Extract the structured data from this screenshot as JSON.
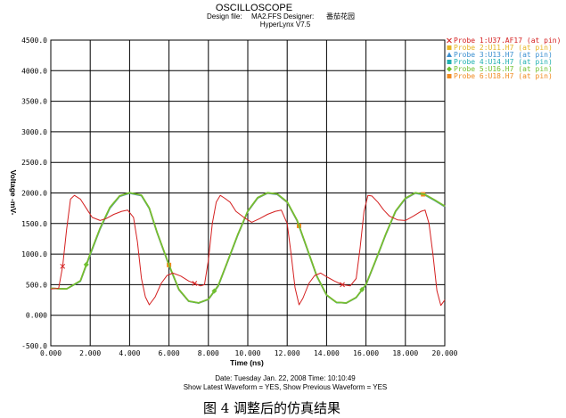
{
  "header": {
    "title": "OSCILLOSCOPE",
    "design_file_label": "Design file:",
    "design_file": "MA2.FFS",
    "designer_label": "Designer:",
    "designer": "番茄花园",
    "version": "HyperLynx V7.5"
  },
  "footer": {
    "date_line": "Date: Tuesday Jan. 22, 2008   Time: 10:10:49",
    "waveform_line": "Show Latest Waveform = YES,  Show Previous Waveform = YES"
  },
  "caption": "图 4   调整后的仿真结果",
  "chart_data": {
    "type": "line",
    "xlabel": "Time (ns)",
    "ylabel": "Voltage -mV-",
    "xlim": [
      0,
      20
    ],
    "ylim": [
      -500,
      4500
    ],
    "grid": true,
    "legend_position": "right",
    "x_ticks": [
      0,
      2,
      4,
      6,
      8,
      10,
      12,
      14,
      16,
      18,
      20
    ],
    "x_tick_labels": [
      "0.000",
      "2.000",
      "4.000",
      "6.000",
      "8.000",
      "10.000",
      "12.000",
      "14.000",
      "16.000",
      "18.000",
      "20.000"
    ],
    "y_ticks": [
      -500,
      0,
      500,
      1000,
      1500,
      2000,
      2500,
      3000,
      3500,
      4000,
      4500
    ],
    "y_tick_labels": [
      "-500.0",
      "0.000",
      "500.0",
      "1000.0",
      "1500.0",
      "2000.0",
      "2500.0",
      "3000.0",
      "3500.0",
      "4000.0",
      "4500.0"
    ],
    "series": [
      {
        "name": "Probe 1:U37.AF17 (at pin)",
        "color": "#d42020",
        "marker": "x",
        "x": [
          0,
          0.4,
          0.6,
          0.8,
          1.0,
          1.2,
          1.5,
          1.8,
          2.1,
          2.5,
          2.8,
          3.2,
          3.6,
          3.9,
          4.2,
          4.4,
          4.6,
          4.8,
          5.0,
          5.3,
          5.6,
          5.9,
          6.2,
          6.6,
          7.0,
          7.3,
          7.6,
          7.8,
          8.0,
          8.2,
          8.4,
          8.6,
          8.8,
          9.1,
          9.4,
          9.8,
          10.2,
          10.6,
          11.0,
          11.4,
          11.7,
          12.0,
          12.2,
          12.4,
          12.6,
          12.8,
          13.1,
          13.4,
          13.7,
          14.0,
          14.4,
          14.8,
          15.2,
          15.5,
          15.7,
          15.9,
          16.1,
          16.3,
          16.6,
          16.9,
          17.2,
          17.6,
          18.0,
          18.4,
          18.8,
          19.0,
          19.2,
          19.4,
          19.6,
          19.8,
          20.0
        ],
        "y": [
          430,
          440,
          800,
          1400,
          1900,
          1960,
          1900,
          1750,
          1600,
          1550,
          1580,
          1650,
          1700,
          1720,
          1600,
          1200,
          600,
          300,
          170,
          300,
          520,
          650,
          690,
          640,
          560,
          520,
          480,
          500,
          900,
          1500,
          1850,
          1960,
          1920,
          1850,
          1700,
          1600,
          1520,
          1580,
          1650,
          1700,
          1720,
          1500,
          1000,
          450,
          170,
          280,
          520,
          650,
          690,
          630,
          560,
          500,
          480,
          600,
          1100,
          1700,
          1960,
          1950,
          1850,
          1720,
          1620,
          1560,
          1550,
          1620,
          1700,
          1720,
          1500,
          1000,
          400,
          160,
          250
        ],
        "markers_x": [
          0.6,
          7.3,
          14.8
        ]
      },
      {
        "name": "Probe 2:U11.H7 (at pin)",
        "color": "#e6b422",
        "marker": "square",
        "x": [
          0,
          0.8,
          1.5,
          2.0,
          2.5,
          3.0,
          3.5,
          4.0,
          4.6,
          5.0,
          5.4,
          6.0,
          6.5,
          7.0,
          7.5,
          8.0,
          8.5,
          9.0,
          9.5,
          10.0,
          10.5,
          11.0,
          11.5,
          12.0,
          12.5,
          13.0,
          13.5,
          14.0,
          14.5,
          15.0,
          15.5,
          16.0,
          16.5,
          17.0,
          17.5,
          18.0,
          18.5,
          19.0,
          19.5,
          20.0
        ],
        "y": [
          440,
          430,
          560,
          1000,
          1420,
          1760,
          1950,
          2000,
          1960,
          1750,
          1350,
          820,
          420,
          230,
          200,
          260,
          480,
          900,
          1320,
          1700,
          1920,
          2000,
          1980,
          1850,
          1550,
          1100,
          640,
          330,
          210,
          200,
          290,
          500,
          900,
          1320,
          1700,
          1910,
          2000,
          1970,
          1880,
          1780
        ],
        "markers_x": []
      },
      {
        "name": "Probe 3:U13.H7 (at pin)",
        "color": "#3a8fd0",
        "marker": "triangle",
        "x": [
          0,
          0.8,
          1.5,
          2.0,
          2.5,
          3.0,
          3.5,
          4.0,
          4.6,
          5.0,
          5.4,
          6.0,
          6.5,
          7.0,
          7.5,
          8.0,
          8.5,
          9.0,
          9.5,
          10.0,
          10.5,
          11.0,
          11.5,
          12.0,
          12.5,
          13.0,
          13.5,
          14.0,
          14.5,
          15.0,
          15.5,
          16.0,
          16.5,
          17.0,
          17.5,
          18.0,
          18.5,
          19.0,
          19.5,
          20.0
        ],
        "y": [
          440,
          430,
          555,
          990,
          1410,
          1750,
          1945,
          1995,
          1955,
          1745,
          1345,
          815,
          415,
          228,
          198,
          258,
          475,
          895,
          1315,
          1695,
          1915,
          1995,
          1975,
          1845,
          1545,
          1095,
          635,
          328,
          208,
          198,
          288,
          495,
          895,
          1315,
          1695,
          1905,
          1995,
          1965,
          1875,
          1775
        ],
        "markers_x": []
      },
      {
        "name": "Probe 4:U14.H7 (at pin)",
        "color": "#20b0b0",
        "marker": "square",
        "x": [
          0,
          0.8,
          1.5,
          2.0,
          2.5,
          3.0,
          3.5,
          4.0,
          4.6,
          5.0,
          5.4,
          6.0,
          6.5,
          7.0,
          7.5,
          8.0,
          8.5,
          9.0,
          9.5,
          10.0,
          10.5,
          11.0,
          11.5,
          12.0,
          12.5,
          13.0,
          13.5,
          14.0,
          14.5,
          15.0,
          15.5,
          16.0,
          16.5,
          17.0,
          17.5,
          18.0,
          18.5,
          19.0,
          19.5,
          20.0
        ],
        "y": [
          440,
          430,
          558,
          995,
          1415,
          1755,
          1948,
          1998,
          1958,
          1748,
          1348,
          818,
          418,
          229,
          199,
          259,
          478,
          898,
          1318,
          1698,
          1918,
          1998,
          1978,
          1848,
          1548,
          1098,
          638,
          329,
          209,
          199,
          289,
          498,
          898,
          1318,
          1698,
          1908,
          1998,
          1968,
          1878,
          1778
        ],
        "markers_x": []
      },
      {
        "name": "Probe 5:U16.H7 (at pin)",
        "color": "#70c030",
        "marker": "diamond",
        "x": [
          0,
          0.8,
          1.5,
          2.0,
          2.5,
          3.0,
          3.5,
          4.0,
          4.6,
          5.0,
          5.4,
          6.0,
          6.5,
          7.0,
          7.5,
          8.0,
          8.5,
          9.0,
          9.5,
          10.0,
          10.5,
          11.0,
          11.5,
          12.0,
          12.5,
          13.0,
          13.5,
          14.0,
          14.5,
          15.0,
          15.5,
          16.0,
          16.5,
          17.0,
          17.5,
          18.0,
          18.5,
          19.0,
          19.5,
          20.0
        ],
        "y": [
          440,
          430,
          565,
          1005,
          1425,
          1765,
          1955,
          2005,
          1965,
          1755,
          1355,
          825,
          425,
          232,
          202,
          262,
          485,
          905,
          1325,
          1705,
          1925,
          2005,
          1985,
          1855,
          1555,
          1105,
          645,
          332,
          212,
          202,
          292,
          505,
          905,
          1325,
          1705,
          1915,
          2005,
          1975,
          1885,
          1785
        ],
        "markers_x": [
          1.8,
          8.3,
          15.8
        ]
      },
      {
        "name": "Probe 6:U18.H7 (at pin)",
        "color": "#f08a20",
        "marker": "square",
        "x": [
          0,
          0.8,
          1.5,
          2.0,
          2.5,
          3.0,
          3.5,
          4.0,
          4.6,
          5.0,
          5.4,
          6.0,
          6.5,
          7.0,
          7.5,
          8.0,
          8.5,
          9.0,
          9.5,
          10.0,
          10.5,
          11.0,
          11.5,
          12.0,
          12.5,
          13.0,
          13.5,
          14.0,
          14.5,
          15.0,
          15.5,
          16.0,
          16.5,
          17.0,
          17.5,
          18.0,
          18.5,
          19.0,
          19.5,
          20.0
        ],
        "y": [
          440,
          430,
          562,
          1002,
          1422,
          1762,
          1952,
          2002,
          1962,
          1752,
          1352,
          822,
          422,
          231,
          201,
          261,
          482,
          902,
          1322,
          1702,
          1922,
          2002,
          1982,
          1852,
          1552,
          1102,
          642,
          331,
          211,
          201,
          291,
          502,
          902,
          1322,
          1702,
          1912,
          2002,
          1972,
          1882,
          1782
        ],
        "markers_x": [
          6.0,
          12.6,
          18.9
        ]
      }
    ]
  }
}
